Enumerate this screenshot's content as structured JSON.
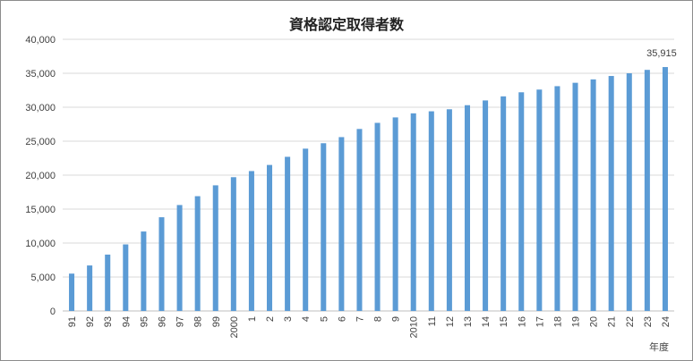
{
  "chart_data": {
    "type": "bar",
    "title": "資格認定取得者数",
    "xlabel": "年度",
    "ylabel": "",
    "ylim": [
      0,
      40000
    ],
    "y_ticks": [
      0,
      5000,
      10000,
      15000,
      20000,
      25000,
      30000,
      35000,
      40000
    ],
    "y_tick_labels": [
      "0",
      "5,000",
      "10,000",
      "15,000",
      "20,000",
      "25,000",
      "30,000",
      "35,000",
      "40,000"
    ],
    "grid": true,
    "legend": "none",
    "bar_color": "#5b9bd5",
    "categories": [
      "91",
      "92",
      "93",
      "94",
      "95",
      "96",
      "97",
      "98",
      "99",
      "2000",
      "1",
      "2",
      "3",
      "4",
      "5",
      "6",
      "7",
      "8",
      "9",
      "2010",
      "11",
      "12",
      "13",
      "14",
      "15",
      "16",
      "17",
      "18",
      "19",
      "20",
      "21",
      "22",
      "23",
      "24"
    ],
    "values": [
      5500,
      6700,
      8300,
      9800,
      11700,
      13800,
      15600,
      16900,
      18500,
      19700,
      20600,
      21500,
      22700,
      23900,
      24700,
      25600,
      26800,
      27700,
      28500,
      29100,
      29400,
      29700,
      30300,
      31000,
      31600,
      32200,
      32600,
      33100,
      33600,
      34100,
      34600,
      35000,
      35500,
      35915
    ],
    "data_labels": [
      {
        "index": 33,
        "text": "35,915"
      }
    ]
  }
}
